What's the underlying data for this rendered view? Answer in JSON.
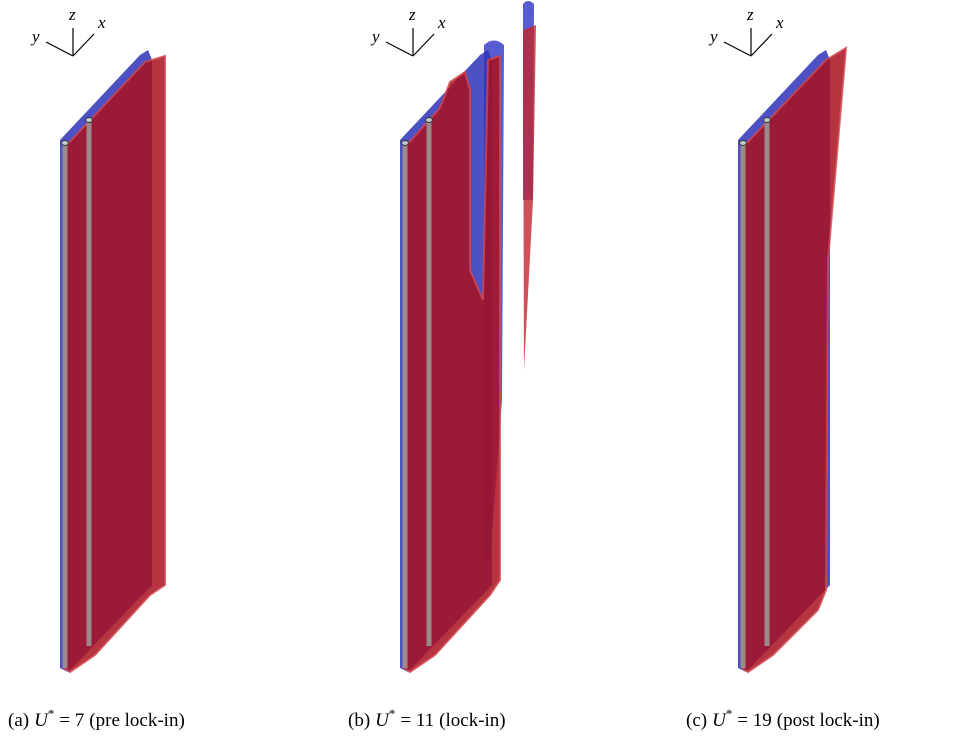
{
  "panels": [
    {
      "axes": {
        "y": "y",
        "z": "z",
        "x": "x"
      },
      "caption": {
        "label": "(a)",
        "symbol": "U",
        "superscript": "*",
        "relation": "= 7",
        "note": "(pre lock-in)"
      }
    },
    {
      "axes": {
        "y": "y",
        "z": "z",
        "x": "x"
      },
      "caption": {
        "label": "(b)",
        "symbol": "U",
        "superscript": "*",
        "relation": "= 11",
        "note": "(lock-in)"
      }
    },
    {
      "axes": {
        "y": "y",
        "z": "z",
        "x": "x"
      },
      "caption": {
        "label": "(c)",
        "symbol": "U",
        "superscript": "*",
        "relation": "= 19",
        "note": "(post lock-in)"
      }
    }
  ]
}
